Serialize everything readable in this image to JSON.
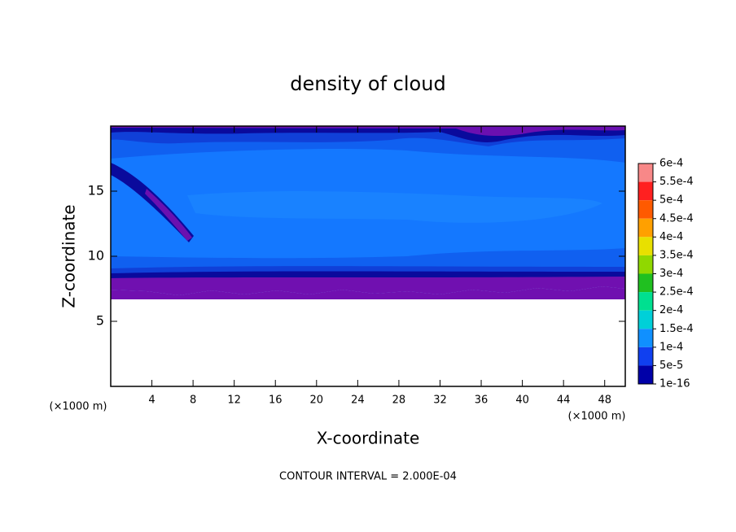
{
  "chart_data": {
    "type": "contour",
    "title": "density of cloud",
    "x_label": "X-coordinate",
    "y_label": "Z-coordinate",
    "x_unit": "(×1000 m)",
    "y_unit": "(×1000 m)",
    "footnote": "CONTOUR INTERVAL = 2.000E-04",
    "xlim": [
      0,
      50
    ],
    "ylim": [
      0,
      20
    ],
    "xticks": [
      4,
      8,
      12,
      16,
      20,
      24,
      28,
      32,
      36,
      40,
      44,
      48
    ],
    "yticks": [
      5,
      10,
      15
    ],
    "colorbar": {
      "levels": [
        {
          "value": 0.0006,
          "label": "6e-4"
        },
        {
          "value": 0.00055,
          "label": "5.5e-4"
        },
        {
          "value": 0.0005,
          "label": "5e-4"
        },
        {
          "value": 0.00045,
          "label": "4.5e-4"
        },
        {
          "value": 0.0004,
          "label": "4e-4"
        },
        {
          "value": 0.00035,
          "label": "3.5e-4"
        },
        {
          "value": 0.0003,
          "label": "3e-4"
        },
        {
          "value": 0.00025,
          "label": "2.5e-4"
        },
        {
          "value": 0.0002,
          "label": "2e-4"
        },
        {
          "value": 0.00015,
          "label": "1.5e-4"
        },
        {
          "value": 0.0001,
          "label": "1e-4"
        },
        {
          "value": 5e-05,
          "label": "5e-5"
        },
        {
          "value": 1e-16,
          "label": "1e-16"
        }
      ],
      "colors": [
        "#f88888",
        "#ff2020",
        "#ff5a00",
        "#ffa000",
        "#e8e000",
        "#90d800",
        "#20c020",
        "#00e090",
        "#00d0d8",
        "#1090ff",
        "#1040f0",
        "#0000a8"
      ]
    }
  }
}
